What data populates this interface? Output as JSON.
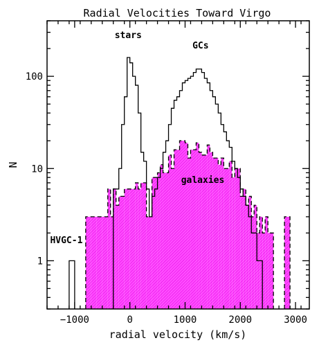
{
  "chart_data": {
    "type": "histogram",
    "title": "Radial Velocities Toward Virgo",
    "xlabel": "radial velocity (km/s)",
    "ylabel": "N",
    "xlim": [
      -1500,
      3250
    ],
    "ylim": [
      0.3,
      400
    ],
    "yscale": "log",
    "grid": false,
    "xticks": [
      -1000,
      0,
      1000,
      2000,
      3000
    ],
    "xtick_labels": [
      "−1000",
      "0",
      "1000",
      "2000",
      "3000"
    ],
    "yticks": [
      1,
      10,
      100
    ],
    "ytick_labels": [
      "1",
      "10",
      "100"
    ],
    "annotations": [
      {
        "text": "stars",
        "x": -30,
        "y": 260
      },
      {
        "text": "GCs",
        "x": 1280,
        "y": 200
      },
      {
        "text": "galaxies",
        "x": 1320,
        "y": 7
      },
      {
        "text": "HVGC-1",
        "x": -1150,
        "y": 1.55
      }
    ],
    "series": [
      {
        "name": "galaxies",
        "style": "dashed outline with magenta hatched fill",
        "color": "#ff00ff",
        "bins": [
          [
            -800,
            -700,
            3
          ],
          [
            -700,
            -600,
            3
          ],
          [
            -600,
            -500,
            3
          ],
          [
            -500,
            -400,
            3
          ],
          [
            -400,
            -350,
            6
          ],
          [
            -350,
            -300,
            3
          ],
          [
            -300,
            -250,
            6
          ],
          [
            -250,
            -200,
            4
          ],
          [
            -200,
            -100,
            5
          ],
          [
            -100,
            0,
            6
          ],
          [
            0,
            100,
            6
          ],
          [
            100,
            150,
            7
          ],
          [
            150,
            200,
            6
          ],
          [
            200,
            300,
            7
          ],
          [
            300,
            400,
            3
          ],
          [
            400,
            500,
            8
          ],
          [
            500,
            550,
            9
          ],
          [
            550,
            600,
            11
          ],
          [
            600,
            700,
            9
          ],
          [
            700,
            750,
            14
          ],
          [
            750,
            800,
            10
          ],
          [
            800,
            900,
            16
          ],
          [
            900,
            1000,
            20
          ],
          [
            1000,
            1050,
            19
          ],
          [
            1050,
            1100,
            13
          ],
          [
            1100,
            1200,
            16
          ],
          [
            1200,
            1250,
            19
          ],
          [
            1250,
            1300,
            15
          ],
          [
            1300,
            1400,
            14
          ],
          [
            1400,
            1450,
            18
          ],
          [
            1450,
            1500,
            15
          ],
          [
            1500,
            1600,
            13
          ],
          [
            1600,
            1650,
            11
          ],
          [
            1650,
            1700,
            13
          ],
          [
            1700,
            1800,
            10
          ],
          [
            1800,
            1850,
            12
          ],
          [
            1850,
            1900,
            8
          ],
          [
            1900,
            2000,
            10
          ],
          [
            2000,
            2050,
            5
          ],
          [
            2050,
            2100,
            6
          ],
          [
            2100,
            2150,
            4
          ],
          [
            2150,
            2200,
            5
          ],
          [
            2200,
            2250,
            3
          ],
          [
            2250,
            2300,
            4
          ],
          [
            2300,
            2350,
            2
          ],
          [
            2350,
            2400,
            3
          ],
          [
            2400,
            2450,
            2
          ],
          [
            2450,
            2500,
            3
          ],
          [
            2500,
            2600,
            2
          ],
          [
            2800,
            2900,
            3
          ]
        ]
      },
      {
        "name": "stars + GCs",
        "style": "solid outline",
        "color": "#000000",
        "bins": [
          [
            -1100,
            -1000,
            1
          ],
          [
            -300,
            -200,
            6
          ],
          [
            -200,
            -150,
            10
          ],
          [
            -150,
            -100,
            30
          ],
          [
            -100,
            -50,
            60
          ],
          [
            -50,
            0,
            160
          ],
          [
            0,
            50,
            140
          ],
          [
            50,
            100,
            100
          ],
          [
            100,
            150,
            80
          ],
          [
            150,
            200,
            40
          ],
          [
            200,
            250,
            15
          ],
          [
            250,
            300,
            12
          ],
          [
            300,
            350,
            6
          ],
          [
            350,
            400,
            3
          ],
          [
            400,
            450,
            5
          ],
          [
            450,
            500,
            6
          ],
          [
            500,
            550,
            8
          ],
          [
            550,
            600,
            10
          ],
          [
            600,
            650,
            15
          ],
          [
            650,
            700,
            20
          ],
          [
            700,
            750,
            30
          ],
          [
            750,
            800,
            45
          ],
          [
            800,
            850,
            55
          ],
          [
            850,
            900,
            60
          ],
          [
            900,
            950,
            70
          ],
          [
            950,
            1000,
            85
          ],
          [
            1000,
            1050,
            90
          ],
          [
            1050,
            1100,
            95
          ],
          [
            1100,
            1150,
            100
          ],
          [
            1150,
            1200,
            110
          ],
          [
            1200,
            1300,
            120
          ],
          [
            1300,
            1350,
            110
          ],
          [
            1350,
            1400,
            95
          ],
          [
            1400,
            1450,
            85
          ],
          [
            1450,
            1500,
            70
          ],
          [
            1500,
            1550,
            60
          ],
          [
            1550,
            1600,
            50
          ],
          [
            1600,
            1650,
            40
          ],
          [
            1650,
            1700,
            30
          ],
          [
            1700,
            1750,
            25
          ],
          [
            1750,
            1800,
            20
          ],
          [
            1800,
            1850,
            17
          ],
          [
            1850,
            1900,
            12
          ],
          [
            1900,
            1950,
            10
          ],
          [
            1950,
            2000,
            8
          ],
          [
            2000,
            2050,
            6
          ],
          [
            2050,
            2100,
            5
          ],
          [
            2100,
            2150,
            4
          ],
          [
            2150,
            2200,
            3
          ],
          [
            2200,
            2300,
            2
          ],
          [
            2300,
            2400,
            1
          ]
        ]
      }
    ]
  }
}
